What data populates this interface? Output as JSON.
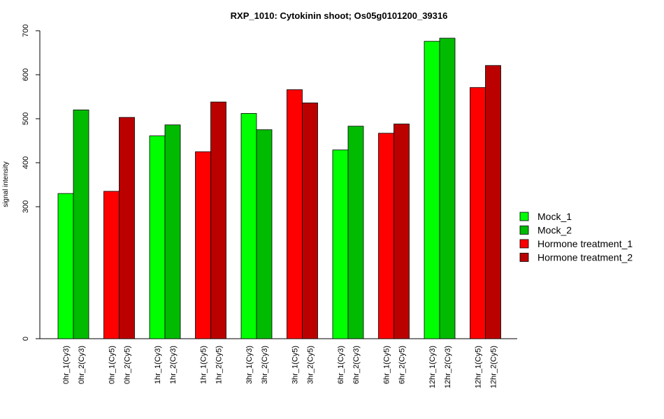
{
  "chart_data": {
    "type": "bar",
    "title": "RXP_1010: Cytokinin shoot; Os05g0101200_39316",
    "ylabel": "signal intensity",
    "xlabel": "",
    "ylim": [
      0,
      700
    ],
    "yticks": [
      0,
      300,
      400,
      500,
      600,
      700
    ],
    "grid": false,
    "legend_position": "right",
    "legend": [
      {
        "name": "Mock_1",
        "color": "#00ff00"
      },
      {
        "name": "Mock_2",
        "color": "#00bb00"
      },
      {
        "name": "Hormone treatment_1",
        "color": "#ff0000"
      },
      {
        "name": "Hormone treatment_2",
        "color": "#bb0000"
      }
    ],
    "groups": [
      {
        "bars": [
          {
            "label": "0hr_1(Cy3)",
            "value": 330,
            "color": "#00ff00"
          },
          {
            "label": "0hr_2(Cy3)",
            "value": 520,
            "color": "#00bb00"
          }
        ]
      },
      {
        "bars": [
          {
            "label": "0hr_1(Cy5)",
            "value": 335,
            "color": "#ff0000"
          },
          {
            "label": "0hr_2(Cy5)",
            "value": 503,
            "color": "#bb0000"
          }
        ]
      },
      {
        "bars": [
          {
            "label": "1hr_1(Cy3)",
            "value": 461,
            "color": "#00ff00"
          },
          {
            "label": "1hr_2(Cy3)",
            "value": 486,
            "color": "#00bb00"
          }
        ]
      },
      {
        "bars": [
          {
            "label": "1hr_1(Cy5)",
            "value": 425,
            "color": "#ff0000"
          },
          {
            "label": "1hr_2(Cy5)",
            "value": 538,
            "color": "#bb0000"
          }
        ]
      },
      {
        "bars": [
          {
            "label": "3hr_1(Cy3)",
            "value": 512,
            "color": "#00ff00"
          },
          {
            "label": "3hr_2(Cy3)",
            "value": 475,
            "color": "#00bb00"
          }
        ]
      },
      {
        "bars": [
          {
            "label": "3hr_1(Cy5)",
            "value": 566,
            "color": "#ff0000"
          },
          {
            "label": "3hr_2(Cy5)",
            "value": 536,
            "color": "#bb0000"
          }
        ]
      },
      {
        "bars": [
          {
            "label": "6hr_1(Cy3)",
            "value": 429,
            "color": "#00ff00"
          },
          {
            "label": "6hr_2(Cy3)",
            "value": 483,
            "color": "#00bb00"
          }
        ]
      },
      {
        "bars": [
          {
            "label": "6hr_1(Cy5)",
            "value": 467,
            "color": "#ff0000"
          },
          {
            "label": "6hr_2(Cy5)",
            "value": 488,
            "color": "#bb0000"
          }
        ]
      },
      {
        "bars": [
          {
            "label": "12hr_1(Cy3)",
            "value": 676,
            "color": "#00ff00"
          },
          {
            "label": "12hr_2(Cy3)",
            "value": 683,
            "color": "#00bb00"
          }
        ]
      },
      {
        "bars": [
          {
            "label": "12hr_1(Cy5)",
            "value": 571,
            "color": "#ff0000"
          },
          {
            "label": "12hr_2(Cy5)",
            "value": 621,
            "color": "#bb0000"
          }
        ]
      }
    ]
  }
}
